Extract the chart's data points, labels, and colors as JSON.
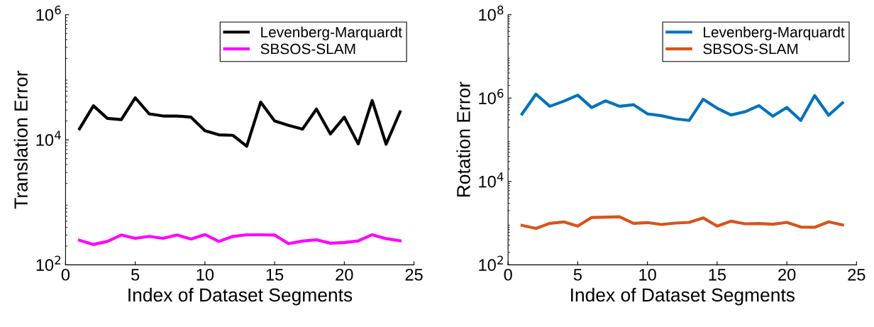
{
  "chart_data": [
    {
      "type": "line",
      "xlabel": "Index of Dataset Segments",
      "ylabel": "Translation Error",
      "log": "y",
      "grid": false,
      "legend": "top right",
      "line_style": "solid",
      "marker": "none",
      "x": [
        1,
        2,
        3,
        4,
        5,
        6,
        7,
        8,
        9,
        10,
        11,
        12,
        13,
        14,
        15,
        16,
        17,
        18,
        19,
        20,
        21,
        22,
        23,
        24
      ],
      "xlim": [
        0,
        25
      ],
      "xticks": [
        0,
        5,
        10,
        15,
        20,
        25
      ],
      "ylim": [
        100,
        1000000
      ],
      "yticks": [
        {
          "value": 100,
          "label": "10$^{2}$"
        },
        {
          "value": 10000,
          "label": "10$^{4}$"
        },
        {
          "value": 1000000,
          "label": "10$^{6}$"
        }
      ],
      "series": [
        {
          "name": "Levenberg-Marquardt",
          "color": "#000000",
          "values": [
            15000,
            35000,
            22000,
            21000,
            47000,
            26000,
            24000,
            24000,
            23000,
            14000,
            12000,
            11800,
            7900,
            40000,
            20000,
            17000,
            14800,
            31000,
            12400,
            23000,
            8600,
            42500,
            8500,
            28000
          ]
        },
        {
          "name": "SBSOS-SLAM",
          "color": "#ff00ff",
          "values": [
            248,
            212,
            237,
            300,
            266,
            285,
            266,
            300,
            259,
            305,
            237,
            285,
            303,
            303,
            300,
            218,
            240,
            252,
            222,
            228,
            242,
            303,
            263,
            243
          ]
        }
      ]
    },
    {
      "type": "line",
      "xlabel": "Index of Dataset Segments",
      "ylabel": "Rotation Error",
      "log": "y",
      "grid": false,
      "legend": "top right",
      "line_style": "solid",
      "marker": "none",
      "x": [
        1,
        2,
        3,
        4,
        5,
        6,
        7,
        8,
        9,
        10,
        11,
        12,
        13,
        14,
        15,
        16,
        17,
        18,
        19,
        20,
        21,
        22,
        23,
        24
      ],
      "xlim": [
        0,
        25
      ],
      "xticks": [
        0,
        5,
        10,
        15,
        20,
        25
      ],
      "ylim": [
        100,
        100000000
      ],
      "yticks": [
        {
          "value": 100,
          "label": "10$^{2}$"
        },
        {
          "value": 10000,
          "label": "10$^{4}$"
        },
        {
          "value": 1000000,
          "label": "10$^{6}$"
        },
        {
          "value": 100000000,
          "label": "10$^{8}$"
        }
      ],
      "series": [
        {
          "name": "Levenberg-Marquardt",
          "color": "#0072bd",
          "values": [
            414000,
            1240000,
            636000,
            843000,
            1180000,
            594000,
            857000,
            636000,
            694000,
            419000,
            378000,
            318000,
            292000,
            940000,
            571000,
            393000,
            470000,
            661000,
            368000,
            594000,
            292000,
            1150000,
            387000,
            771000
          ]
        },
        {
          "name": "SBSOS-SLAM",
          "color": "#d95319",
          "values": [
            884,
            748,
            993,
            1074,
            851,
            1372,
            1394,
            1427,
            993,
            1033,
            930,
            1005,
            1045,
            1340,
            851,
            1116,
            967,
            982,
            944,
            1045,
            809,
            796,
            1074,
            908
          ]
        }
      ]
    }
  ]
}
